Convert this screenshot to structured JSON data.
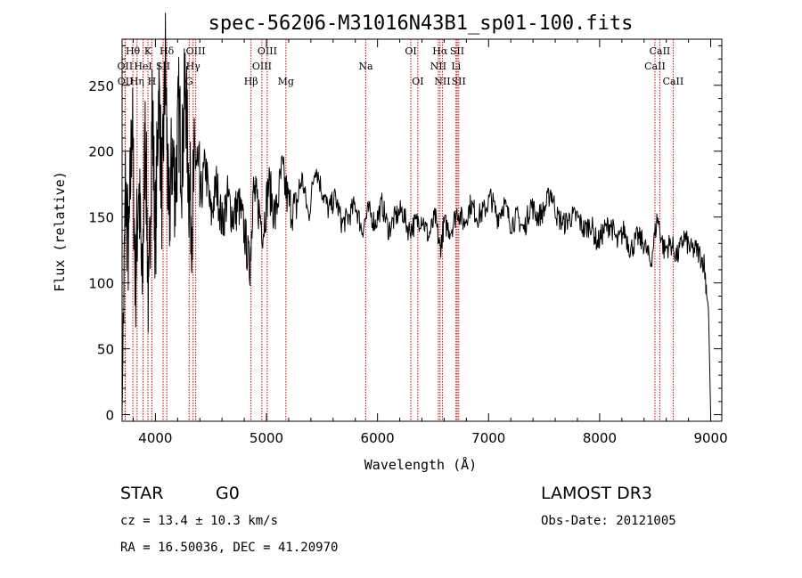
{
  "chart_data": {
    "type": "line",
    "title": "spec-56206-M31016N43B1_sp01-100.fits",
    "xlabel": "Wavelength (Å)",
    "ylabel": "Flux (relative)",
    "xlim": [
      3700,
      9100
    ],
    "ylim": [
      -5,
      285
    ],
    "xticks": [
      4000,
      5000,
      6000,
      7000,
      8000,
      9000
    ],
    "yticks": [
      0,
      50,
      100,
      150,
      200,
      250
    ],
    "xtick_labels": [
      "4000",
      "5000",
      "6000",
      "7000",
      "8000",
      "9000"
    ],
    "ytick_labels": [
      "0",
      "50",
      "100",
      "150",
      "200",
      "250"
    ],
    "series": [
      {
        "name": "flux",
        "x": [
          3700,
          3730,
          3760,
          3790,
          3820,
          3850,
          3880,
          3910,
          3940,
          3970,
          4000,
          4030,
          4060,
          4090,
          4120,
          4150,
          4180,
          4210,
          4240,
          4270,
          4300,
          4330,
          4360,
          4400,
          4450,
          4500,
          4550,
          4600,
          4650,
          4700,
          4750,
          4800,
          4850,
          4880,
          4920,
          4970,
          5020,
          5080,
          5140,
          5200,
          5260,
          5320,
          5380,
          5440,
          5500,
          5560,
          5620,
          5680,
          5740,
          5800,
          5860,
          5920,
          5980,
          6040,
          6100,
          6160,
          6220,
          6280,
          6340,
          6400,
          6460,
          6520,
          6563,
          6600,
          6660,
          6720,
          6780,
          6840,
          6900,
          6960,
          7020,
          7080,
          7140,
          7200,
          7260,
          7320,
          7380,
          7440,
          7500,
          7560,
          7620,
          7680,
          7740,
          7800,
          7860,
          7920,
          7980,
          8040,
          8100,
          8160,
          8220,
          8280,
          8340,
          8400,
          8460,
          8520,
          8580,
          8640,
          8700,
          8760,
          8820,
          8880,
          8940,
          8980,
          9000
        ],
        "y": [
          0,
          170,
          120,
          230,
          100,
          180,
          90,
          220,
          70,
          240,
          130,
          250,
          160,
          270,
          140,
          200,
          170,
          230,
          190,
          255,
          175,
          150,
          200,
          160,
          190,
          150,
          175,
          145,
          165,
          150,
          160,
          140,
          110,
          170,
          160,
          140,
          175,
          150,
          185,
          160,
          155,
          180,
          150,
          190,
          170,
          155,
          165,
          145,
          150,
          160,
          140,
          155,
          145,
          160,
          140,
          150,
          155,
          140,
          145,
          150,
          135,
          150,
          125,
          145,
          140,
          155,
          145,
          160,
          150,
          155,
          165,
          150,
          160,
          145,
          150,
          140,
          160,
          150,
          155,
          170,
          150,
          145,
          150,
          150,
          140,
          145,
          130,
          140,
          145,
          130,
          140,
          125,
          135,
          130,
          115,
          150,
          125,
          130,
          120,
          135,
          125,
          125,
          115,
          80,
          0
        ]
      }
    ],
    "spectral_lines": [
      {
        "name": "Hθ",
        "wavelength": 3797,
        "tier": 1
      },
      {
        "name": "OII",
        "wavelength": 3727,
        "tier": 2
      },
      {
        "name": "OII",
        "wavelength": 3729,
        "tier": 3
      },
      {
        "name": "Hη",
        "wavelength": 3835,
        "tier": 3
      },
      {
        "name": "HeI",
        "wavelength": 3889,
        "tier": 2
      },
      {
        "name": "K",
        "wavelength": 3933,
        "tier": 1
      },
      {
        "name": "SII",
        "wavelength": 4069,
        "tier": 2
      },
      {
        "name": "H",
        "wavelength": 3968,
        "tier": 3
      },
      {
        "name": "Hδ",
        "wavelength": 4102,
        "tier": 1
      },
      {
        "name": "OIII",
        "wavelength": 4363,
        "tier": 1
      },
      {
        "name": "Hγ",
        "wavelength": 4340,
        "tier": 2
      },
      {
        "name": "G",
        "wavelength": 4304,
        "tier": 3
      },
      {
        "name": "OIII",
        "wavelength": 5007,
        "tier": 1
      },
      {
        "name": "OIII",
        "wavelength": 4959,
        "tier": 2
      },
      {
        "name": "Hβ",
        "wavelength": 4861,
        "tier": 3
      },
      {
        "name": "Mg",
        "wavelength": 5175,
        "tier": 3
      },
      {
        "name": "Na",
        "wavelength": 5894,
        "tier": 2
      },
      {
        "name": "OI",
        "wavelength": 6300,
        "tier": 1
      },
      {
        "name": "OI",
        "wavelength": 6363,
        "tier": 3
      },
      {
        "name": "Hα",
        "wavelength": 6563,
        "tier": 1
      },
      {
        "name": "NII",
        "wavelength": 6548,
        "tier": 2
      },
      {
        "name": "NII",
        "wavelength": 6584,
        "tier": 3
      },
      {
        "name": "SII",
        "wavelength": 6717,
        "tier": 1
      },
      {
        "name": "Li",
        "wavelength": 6707,
        "tier": 2
      },
      {
        "name": "SII",
        "wavelength": 6731,
        "tier": 3
      },
      {
        "name": "CaII",
        "wavelength": 8542,
        "tier": 1
      },
      {
        "name": "CaII",
        "wavelength": 8498,
        "tier": 2
      },
      {
        "name": "CaII",
        "wavelength": 8662,
        "tier": 3
      }
    ]
  },
  "info": {
    "class": "STAR",
    "subclass": "G0",
    "survey": "LAMOST DR3",
    "cz": "cz = 13.4 ± 10.3 km/s",
    "obs_date": "Obs-Date: 20121005",
    "radec": "RA =  16.50036, DEC =  41.20970"
  },
  "colors": {
    "spectrum": "#000000",
    "line_marker": "#cc0000",
    "axes": "#000000"
  }
}
